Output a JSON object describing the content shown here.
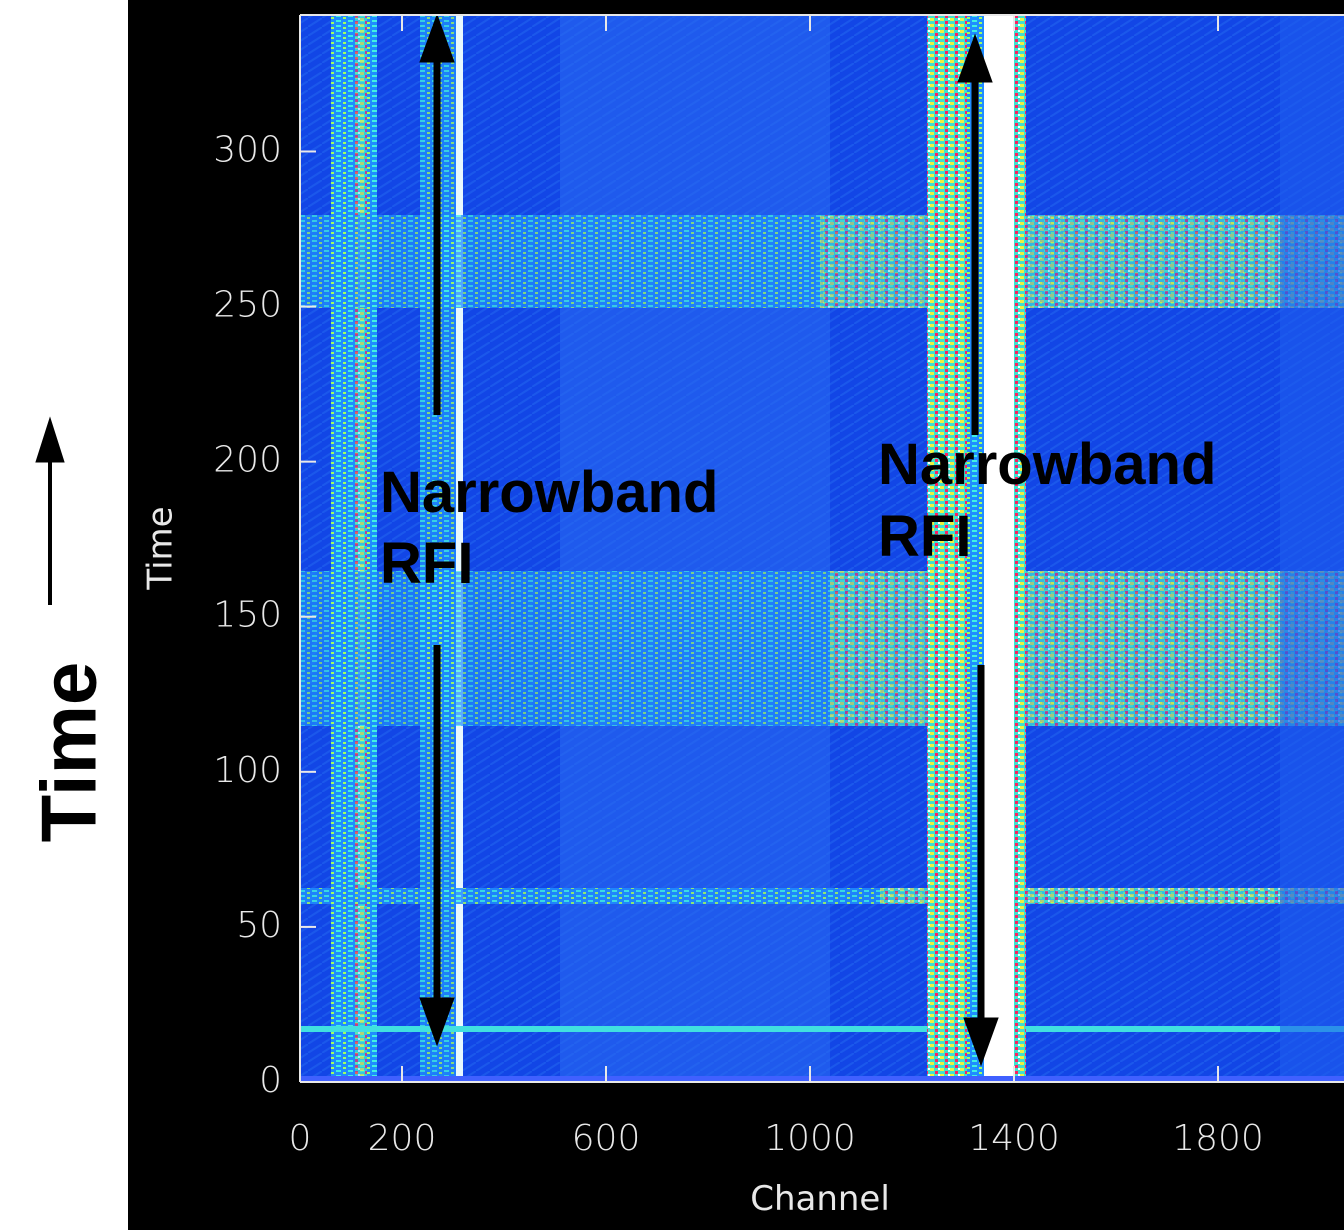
{
  "chart_data": {
    "type": "heatmap",
    "side_label": "Time",
    "x_label": "Channel",
    "y_label": "Time",
    "xlim": [
      0,
      2048
    ],
    "ylim": [
      0,
      344
    ],
    "xticks": [
      0,
      200,
      600,
      1000,
      1400,
      1800
    ],
    "yticks": [
      0,
      50,
      100,
      150,
      200,
      250,
      300
    ],
    "annotations": [
      {
        "lines": [
          "Narrowband",
          "RFI"
        ]
      },
      {
        "lines": [
          "Narrowband",
          "RFI"
        ]
      }
    ]
  }
}
